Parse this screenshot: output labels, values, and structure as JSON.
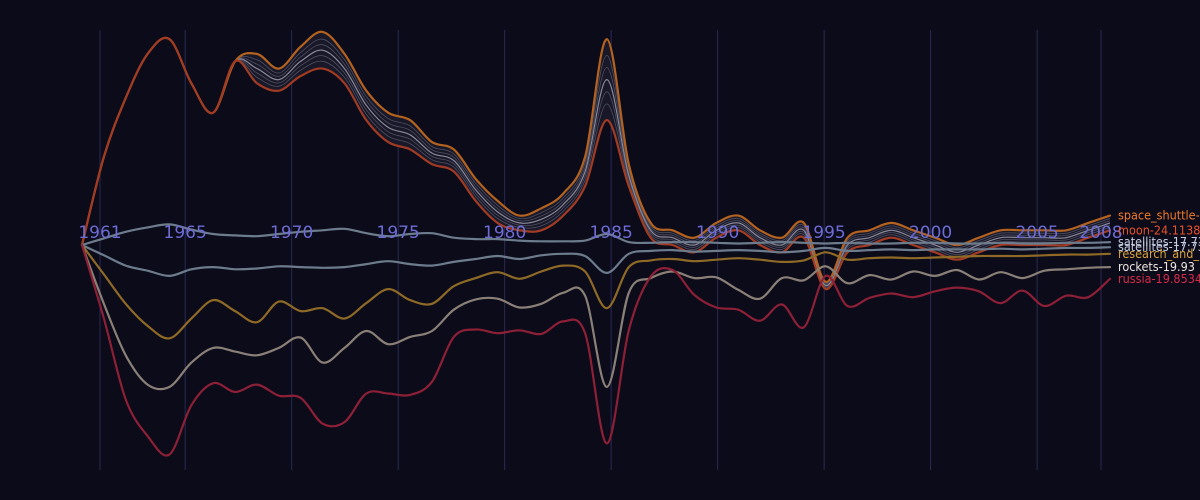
{
  "chart_data": {
    "type": "line",
    "title": "",
    "xlabel": "",
    "ylabel": "",
    "x_domain": [
      1961,
      2008
    ],
    "y_domain": [
      -30,
      30
    ],
    "grid": true,
    "tick_labels": [
      "1961",
      "1965",
      "1970",
      "1975",
      "1980",
      "1985",
      "1990",
      "1995",
      "2000",
      "2005",
      "2008"
    ],
    "x": [
      1961,
      1962,
      1963,
      1964,
      1965,
      1966,
      1967,
      1968,
      1969,
      1970,
      1971,
      1972,
      1973,
      1974,
      1975,
      1976,
      1977,
      1978,
      1979,
      1980,
      1981,
      1982,
      1983,
      1984,
      1985,
      1986,
      1987,
      1988,
      1989,
      1990,
      1991,
      1992,
      1993,
      1994,
      1995,
      1996,
      1997,
      1998,
      1999,
      2000,
      2001,
      2002,
      2003,
      2004,
      2005,
      2006,
      2007,
      2008
    ],
    "series": [
      {
        "name": "space_shuttle",
        "label": "space_shuttle-",
        "color": "#b4621f",
        "label_color": "#f07a2a",
        "values": [
          0,
          12,
          20,
          26,
          28,
          22,
          18,
          25,
          26,
          24,
          27,
          29,
          26,
          21,
          18,
          17,
          14,
          13,
          9,
          6,
          4,
          5,
          7,
          12,
          28,
          11,
          3,
          2,
          1,
          3,
          4,
          2,
          1,
          3,
          -5,
          1,
          2,
          3,
          2,
          1,
          0,
          1,
          2,
          2,
          2,
          2,
          3,
          4
        ]
      },
      {
        "name": "moon",
        "label": "moon-24.11387 r",
        "color": "#a13b23",
        "label_color": "#e8512a",
        "values": [
          0,
          12,
          20,
          26,
          28,
          22,
          18,
          25,
          22,
          21,
          23,
          24,
          22,
          17,
          14,
          13,
          11,
          10,
          6,
          3,
          2,
          2,
          4,
          8,
          17,
          8,
          1,
          0,
          -1,
          1,
          2,
          0,
          -1,
          1,
          -6,
          -1,
          0,
          1,
          0,
          -1,
          -2,
          -1,
          0,
          0,
          0,
          0,
          1,
          2
        ]
      },
      {
        "name": "satellites_upper",
        "label": "satellites-17.73",
        "color": "#6d7c8d",
        "label_color": "#c6cde2",
        "values": [
          0,
          0.9,
          1.8,
          2.4,
          2.8,
          2.1,
          1.5,
          1.3,
          1.2,
          1.5,
          1.8,
          2.0,
          2.2,
          1.6,
          1.2,
          1.5,
          1.6,
          1.0,
          0.8,
          0.8,
          0.6,
          0.5,
          0.5,
          0.6,
          1.5,
          0.4,
          0.3,
          0.4,
          0.4,
          0.3,
          0.2,
          0.3,
          0.4,
          0.3,
          0.2,
          0.3,
          0.2,
          0.2,
          0.3,
          0.3,
          0.2,
          0.2,
          0.3,
          0.2,
          0.2,
          0.3,
          0.3,
          0.4
        ]
      },
      {
        "name": "satellites_lower",
        "label": "satellites-17.73",
        "color": "#6d7c8d",
        "label_color": "#c6cde2",
        "values": [
          0,
          -1.4,
          -2.8,
          -3.5,
          -4.2,
          -3.3,
          -3.0,
          -3.3,
          -3.2,
          -2.9,
          -3.0,
          -3.1,
          -3.0,
          -2.6,
          -2.2,
          -2.6,
          -2.8,
          -2.3,
          -1.9,
          -1.5,
          -1.9,
          -1.4,
          -1.2,
          -1.5,
          -3.8,
          -1.2,
          -0.8,
          -0.7,
          -0.9,
          -0.8,
          -0.7,
          -0.8,
          -1.0,
          -0.8,
          -0.4,
          -0.8,
          -0.7,
          -0.6,
          -0.7,
          -0.6,
          -0.6,
          -0.6,
          -0.5,
          -0.6,
          -0.5,
          -0.4,
          -0.4,
          -0.3
        ]
      },
      {
        "name": "research_and_development",
        "label": "research_and_",
        "color": "#8e6a26",
        "label_color": "#d9a23a",
        "values": [
          0,
          -4,
          -8,
          -11,
          -12.7,
          -10,
          -7.5,
          -9,
          -10.5,
          -7.7,
          -9,
          -8.6,
          -10,
          -7.9,
          -6,
          -7.5,
          -8,
          -5.6,
          -4.5,
          -3.7,
          -4.6,
          -3.6,
          -2.8,
          -3.6,
          -8.6,
          -3.0,
          -2.1,
          -1.9,
          -2.2,
          -2.0,
          -1.8,
          -2.0,
          -2.3,
          -2.1,
          -1.0,
          -2.0,
          -1.8,
          -1.7,
          -1.8,
          -1.7,
          -1.6,
          -1.5,
          -1.5,
          -1.5,
          -1.4,
          -1.3,
          -1.3,
          -1.2
        ]
      },
      {
        "name": "rockets",
        "label": "rockets-19.93",
        "color": "#8a8077",
        "label_color": "#ece6de",
        "values": [
          0,
          -8,
          -15,
          -19,
          -19.3,
          -16,
          -14,
          -14.5,
          -15,
          -14,
          -12.6,
          -16,
          -14,
          -11.7,
          -13.5,
          -12.5,
          -11.7,
          -8.8,
          -7.4,
          -7.3,
          -8.5,
          -8.0,
          -6.5,
          -6.9,
          -19.3,
          -6.5,
          -4.5,
          -3.6,
          -4.5,
          -4.4,
          -6.1,
          -7.3,
          -4.5,
          -4.8,
          -2.9,
          -5.2,
          -4.1,
          -4.7,
          -3.6,
          -4.2,
          -3.4,
          -4.7,
          -3.7,
          -4.5,
          -3.5,
          -3.3,
          -3.1,
          -3.0
        ]
      },
      {
        "name": "russia",
        "label": "russia-19.8534",
        "color": "#8d1f36",
        "label_color": "#d8294a",
        "values": [
          0,
          -10,
          -21,
          -26,
          -28.5,
          -21.8,
          -18.8,
          -20.0,
          -19.0,
          -20.5,
          -20.8,
          -24.3,
          -24.1,
          -20.2,
          -20.2,
          -20.4,
          -18.6,
          -12.5,
          -11.5,
          -12.0,
          -11.6,
          -12.1,
          -10.4,
          -12.0,
          -27.0,
          -11.6,
          -4.3,
          -3.4,
          -6.8,
          -8.5,
          -8.8,
          -10.3,
          -8.1,
          -11.2,
          -4.2,
          -8.3,
          -7.2,
          -6.6,
          -7.1,
          -6.3,
          -5.8,
          -6.3,
          -7.9,
          -6.2,
          -8.3,
          -6.9,
          -7.1,
          -4.6
        ]
      }
    ]
  }
}
